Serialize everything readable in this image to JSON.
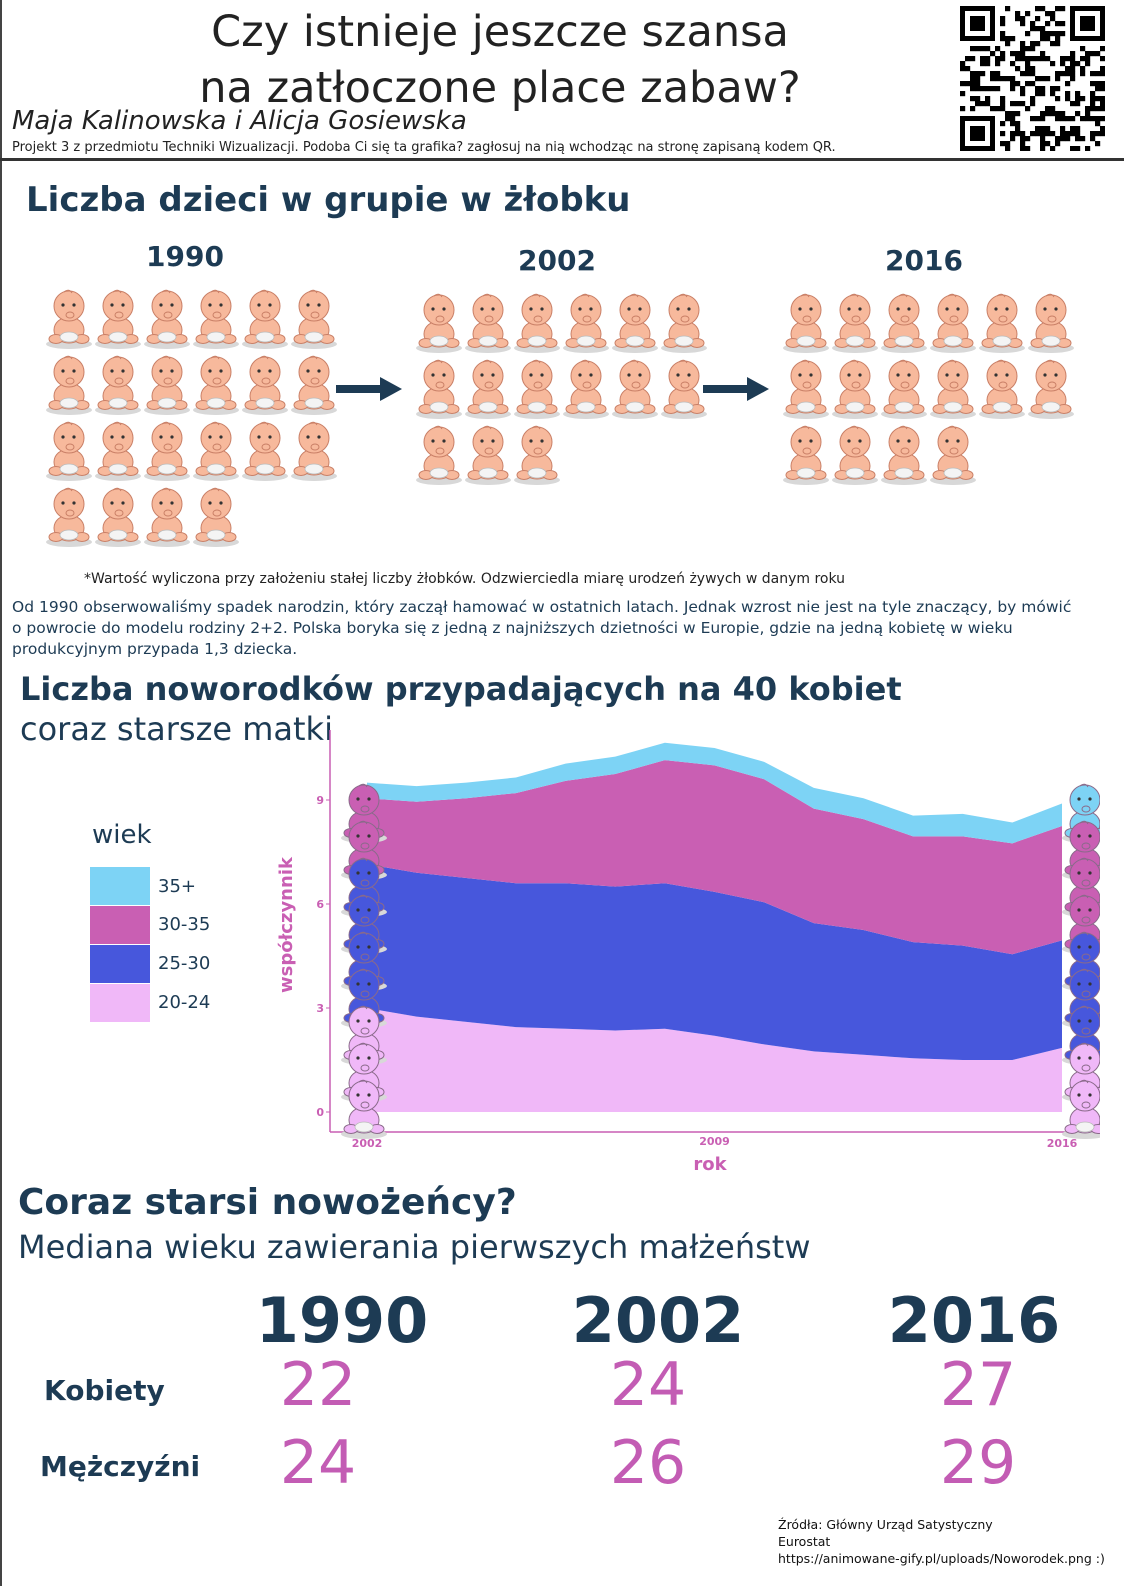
{
  "header": {
    "title_line1": "Czy istnieje jeszcze szansa",
    "title_line2": "na zatłoczone place zabaw?",
    "authors": "Maja Kalinowska i Alicja Gosiewska",
    "project_note": "Projekt 3 z przedmiotu Techniki Wizualizacji. Podoba Ci się ta grafika? zagłosuj na nią wchodząc na stronę zapisaną kodem QR."
  },
  "section1": {
    "title": "Liczba dzieci w grupie w żłobku",
    "groups": [
      {
        "year": "1990",
        "count": 22
      },
      {
        "year": "2002",
        "count": 15
      },
      {
        "year": "2016",
        "count": 16
      }
    ],
    "footnote": "*Wartość wyliczona przy założeniu stałej liczby żłobków. Odzwierciedla miarę urodzeń żywych w danym roku",
    "paragraph": "Od 1990 obserwowaliśmy spadek narodzin, który zaczął hamować w ostatnich latach.  Jednak wzrost nie jest na tyle znaczący, by mówić o powrocie do modelu rodziny 2+2. Polska boryka się z jedną z najniższych dzietności w Europie, gdzie na jedną kobietę  w wieku produkcyjnym przypada 1,3 dziecka."
  },
  "section2": {
    "title": "Liczba noworodków przypadających na 40 kobiet",
    "subtitle": "coraz starsze matki",
    "legend_title": "wiek"
  },
  "colors": {
    "age_35_plus": "#7dd3f5",
    "age_30_35": "#c95fb3",
    "age_25_30": "#4757dc",
    "age_20_24": "#f0b8f8",
    "title_navy": "#1d3b54",
    "value_pink": "#c35cb4",
    "axis_pink": "#c95fb3"
  },
  "chart_data": {
    "type": "area",
    "stacked": true,
    "xlabel": "rok",
    "ylabel": "współczynnik",
    "x": [
      2002,
      2003,
      2004,
      2005,
      2006,
      2007,
      2008,
      2009,
      2010,
      2011,
      2012,
      2013,
      2014,
      2015,
      2016
    ],
    "x_ticks": [
      "2002",
      "2009",
      "2016"
    ],
    "y_ticks": [
      "0",
      "3",
      "6",
      "9"
    ],
    "ylim": [
      0,
      10.5
    ],
    "series": [
      {
        "name": "20-24",
        "color": "#f0b8f8",
        "values": [
          3.0,
          2.75,
          2.6,
          2.45,
          2.4,
          2.35,
          2.4,
          2.2,
          1.95,
          1.75,
          1.65,
          1.55,
          1.5,
          1.5,
          1.85
        ]
      },
      {
        "name": "25-30",
        "color": "#4757dc",
        "values": [
          4.15,
          4.15,
          4.15,
          4.15,
          4.2,
          4.15,
          4.2,
          4.15,
          4.1,
          3.7,
          3.6,
          3.35,
          3.3,
          3.05,
          3.1
        ]
      },
      {
        "name": "30-35",
        "color": "#c95fb3",
        "values": [
          1.9,
          2.05,
          2.3,
          2.6,
          2.95,
          3.25,
          3.55,
          3.65,
          3.55,
          3.3,
          3.2,
          3.05,
          3.15,
          3.2,
          3.3
        ]
      },
      {
        "name": "35+",
        "color": "#7dd3f5",
        "values": [
          0.45,
          0.45,
          0.45,
          0.45,
          0.5,
          0.5,
          0.5,
          0.5,
          0.5,
          0.6,
          0.6,
          0.6,
          0.65,
          0.6,
          0.65
        ]
      }
    ],
    "legend": [
      "35+",
      "30-35",
      "25-30",
      "20-24"
    ]
  },
  "section3": {
    "title": "Coraz starsi nowożeńcy?",
    "subtitle": "Mediana wieku zawierania pierwszych małżeństw",
    "years": [
      "1990",
      "2002",
      "2016"
    ],
    "rows": [
      {
        "label": "Kobiety",
        "values": [
          "22",
          "24",
          "27"
        ]
      },
      {
        "label": "Mężczyźni",
        "values": [
          "24",
          "26",
          "29"
        ]
      }
    ]
  },
  "sources": [
    "Źródła: Główny Urząd Satystyczny",
    "Eurostat",
    "https://animowane-gify.pl/uploads/Noworodek.png :)"
  ]
}
